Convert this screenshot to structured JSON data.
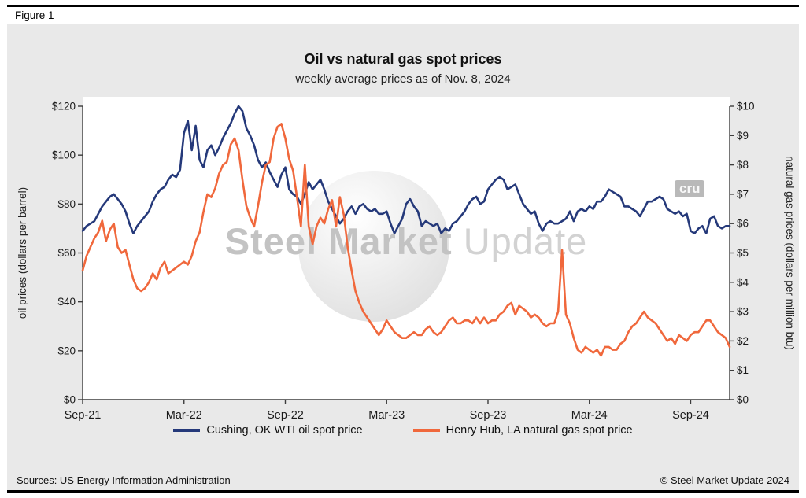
{
  "figure_label": "Figure 1",
  "chart_data": {
    "type": "line",
    "title": "Oil vs natural gas spot prices",
    "subtitle": "weekly average prices as of Nov. 8, 2024",
    "grid": false,
    "legend_position": "bottom",
    "left_axis": {
      "label": "oil prices (dollars per barrel)",
      "range": [
        0,
        120
      ],
      "tick_values": [
        0,
        20,
        40,
        60,
        80,
        100,
        120
      ],
      "tick_labels": [
        "$0",
        "$20",
        "$40",
        "$60",
        "$80",
        "$100",
        "$120"
      ]
    },
    "right_axis": {
      "label": "natural gas prices (dollars per million btu)",
      "range": [
        0,
        10
      ],
      "tick_values": [
        0,
        1,
        2,
        3,
        4,
        5,
        6,
        7,
        8,
        9,
        10
      ],
      "tick_labels": [
        "$0",
        "$1",
        "$2",
        "$3",
        "$4",
        "$5",
        "$6",
        "$7",
        "$8",
        "$9",
        "$10"
      ]
    },
    "x_axis": {
      "unit": "week",
      "ticks": [
        {
          "label": "Sep-21",
          "week": 0
        },
        {
          "label": "Mar-22",
          "week": 26
        },
        {
          "label": "Sep-22",
          "week": 52
        },
        {
          "label": "Mar-23",
          "week": 78
        },
        {
          "label": "Sep-23",
          "week": 104
        },
        {
          "label": "Mar-24",
          "week": 130
        },
        {
          "label": "Sep-24",
          "week": 156
        }
      ]
    },
    "series": [
      {
        "id": "wti-oil-line",
        "name": "Cushing, OK WTI oil spot price",
        "axis": "left",
        "color": "#25397a",
        "values": [
          69,
          71,
          72,
          73,
          76,
          79,
          81,
          83,
          84,
          82,
          80,
          77,
          72,
          68,
          71,
          73,
          75,
          77,
          81,
          84,
          86,
          87,
          90,
          92,
          91,
          94,
          109,
          114,
          102,
          112,
          98,
          95,
          102,
          104,
          100,
          103,
          107,
          110,
          113,
          117,
          120,
          118,
          111,
          108,
          104,
          98,
          95,
          97,
          93,
          90,
          87,
          92,
          95,
          86,
          84,
          83,
          80,
          84,
          89,
          86,
          88,
          90,
          86,
          81,
          78,
          75,
          72,
          74,
          77,
          79,
          76,
          79,
          80,
          78,
          77,
          78,
          76,
          76,
          77,
          72,
          68,
          71,
          74,
          80,
          82,
          79,
          77,
          71,
          73,
          72,
          71,
          72,
          68,
          70,
          69,
          72,
          73,
          75,
          77,
          80,
          82,
          83,
          80,
          81,
          86,
          88,
          90,
          91,
          90,
          86,
          87,
          88,
          84,
          80,
          78,
          76,
          77,
          72,
          69,
          72,
          73,
          72,
          72,
          73,
          74,
          77,
          73,
          77,
          78,
          77,
          79,
          78,
          81,
          81,
          83,
          86,
          85,
          84,
          83,
          79,
          79,
          78,
          77,
          75,
          78,
          81,
          81,
          82,
          83,
          82,
          78,
          77,
          76,
          77,
          75,
          76,
          69,
          68,
          70,
          71,
          68,
          74,
          75,
          71,
          70,
          71,
          71
        ]
      },
      {
        "id": "henry-hub-gas-line",
        "name": "Henry Hub, LA natural gas spot price",
        "axis": "right",
        "color": "#f0683c",
        "values": [
          4.4,
          4.9,
          5.2,
          5.5,
          5.7,
          6.1,
          5.4,
          5.8,
          6.0,
          5.2,
          5.0,
          5.1,
          4.6,
          4.1,
          3.8,
          3.7,
          3.8,
          4.0,
          4.3,
          4.1,
          4.5,
          4.7,
          4.3,
          4.4,
          4.5,
          4.6,
          4.7,
          4.6,
          4.9,
          5.4,
          5.7,
          6.4,
          7.0,
          6.9,
          7.2,
          7.7,
          8.0,
          8.1,
          8.7,
          8.9,
          8.5,
          7.5,
          6.6,
          6.2,
          5.9,
          6.6,
          7.4,
          8.0,
          8.1,
          8.9,
          9.3,
          9.4,
          8.9,
          8.2,
          7.8,
          6.9,
          5.9,
          8.0,
          5.9,
          5.3,
          5.9,
          6.2,
          6.0,
          6.5,
          6.8,
          5.9,
          6.9,
          6.3,
          5.2,
          4.4,
          3.7,
          3.3,
          3.0,
          2.8,
          2.6,
          2.4,
          2.2,
          2.4,
          2.7,
          2.5,
          2.3,
          2.2,
          2.1,
          2.1,
          2.2,
          2.3,
          2.2,
          2.2,
          2.4,
          2.5,
          2.3,
          2.2,
          2.3,
          2.5,
          2.7,
          2.8,
          2.6,
          2.6,
          2.7,
          2.7,
          2.6,
          2.8,
          2.6,
          2.8,
          2.6,
          2.7,
          2.7,
          2.9,
          3.0,
          3.2,
          3.3,
          2.9,
          3.2,
          3.1,
          3.0,
          2.8,
          2.9,
          2.8,
          2.6,
          2.5,
          2.6,
          2.6,
          3.0,
          5.1,
          2.9,
          2.6,
          2.1,
          1.7,
          1.6,
          1.8,
          1.7,
          1.6,
          1.7,
          1.5,
          1.8,
          1.8,
          1.7,
          1.7,
          1.9,
          2.0,
          2.3,
          2.5,
          2.6,
          2.8,
          3.0,
          2.8,
          2.7,
          2.6,
          2.4,
          2.2,
          2.0,
          2.1,
          1.9,
          2.2,
          2.1,
          2.0,
          2.2,
          2.3,
          2.3,
          2.5,
          2.7,
          2.7,
          2.5,
          2.3,
          2.2,
          2.1,
          1.8
        ]
      }
    ]
  },
  "watermark": {
    "part1": "Steel Market",
    "part2": "Update",
    "badge": "cru"
  },
  "footer": {
    "sources": "Sources: US Energy Information Administration",
    "copyright": "© Steel Market Update 2024"
  }
}
